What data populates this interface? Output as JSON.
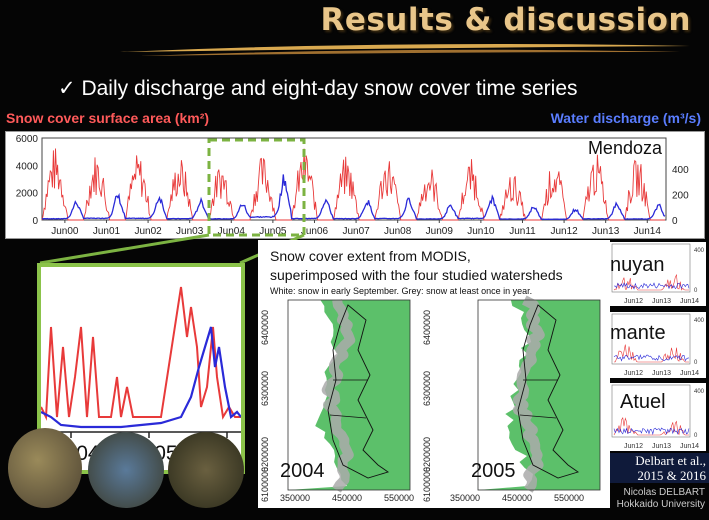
{
  "slide": {
    "title": "Results & discussion",
    "bullet_icon": "check-mark",
    "bullet": "Daily discharge and eight-day snow cover time series",
    "left_axis_label": "Snow cover surface area (km²)",
    "right_axis_label": "Water discharge (m³/s)",
    "colors": {
      "title": "#e9c68a",
      "snow": "#e83a3a",
      "water": "#2a2ad8",
      "zoom": "#7cb342",
      "land": "#5cc06a"
    }
  },
  "main_chart": {
    "station": "Mendoza",
    "left_ticks": [
      "6000",
      "4000",
      "2000",
      "0"
    ],
    "right_ticks": [
      "400",
      "200",
      "0"
    ],
    "x_ticks": [
      "Jun00",
      "Jun01",
      "Jun02",
      "Jun03",
      "Jun04",
      "Jun05",
      "Jun06",
      "Jun07",
      "Jun08",
      "Jun09",
      "Jun10",
      "Jun11",
      "Jun12",
      "Jun13",
      "Jun14"
    ]
  },
  "chart_data": {
    "type": "line",
    "x": [
      "Jun00",
      "Jun01",
      "Jun02",
      "Jun03",
      "Jun04",
      "Jun05",
      "Jun06",
      "Jun07",
      "Jun08",
      "Jun09",
      "Jun10",
      "Jun11",
      "Jun12",
      "Jun13",
      "Jun14"
    ],
    "series": [
      {
        "name": "Snow cover surface area (km²)",
        "axis": "left",
        "peaks": [
          5400,
          5000,
          4900,
          4700,
          4300,
          4800,
          5400,
          4700,
          4800,
          4100,
          4500,
          3500,
          4300,
          4900,
          4600
        ]
      },
      {
        "name": "Water discharge (m³/s)",
        "axis": "right",
        "peaks": [
          130,
          180,
          170,
          140,
          120,
          310,
          150,
          140,
          150,
          110,
          160,
          100,
          80,
          120,
          110
        ]
      }
    ],
    "ylim_left": [
      0,
      6000
    ],
    "ylim_right": [
      0,
      400
    ]
  },
  "inset": {
    "x_ticks": [
      "Jun04",
      "Jun05",
      "Ju"
    ]
  },
  "map": {
    "title_line1": "Snow cover extent from MODIS,",
    "title_line2": "superimposed with the four studied watersheds",
    "subtitle": "White: snow in early September. Grey: snow at least once in year.",
    "y_ticks": [
      "6400000",
      "6300000",
      "6200000",
      "6100000"
    ],
    "x_ticks": [
      "350000",
      "450000",
      "550000"
    ],
    "panels": [
      "2004",
      "2005"
    ]
  },
  "side_stations": [
    "nuyan",
    "mante",
    "Atuel"
  ],
  "side_ticks": {
    "right": [
      "400",
      "0"
    ],
    "x": [
      "Jun12",
      "Jun13",
      "Jun14"
    ]
  },
  "citation": {
    "line1": "Delbart et al.,",
    "line2": "2015 & 2016"
  },
  "author": {
    "line1": "Nicolas DELBART",
    "line2": "Hokkaido University"
  }
}
